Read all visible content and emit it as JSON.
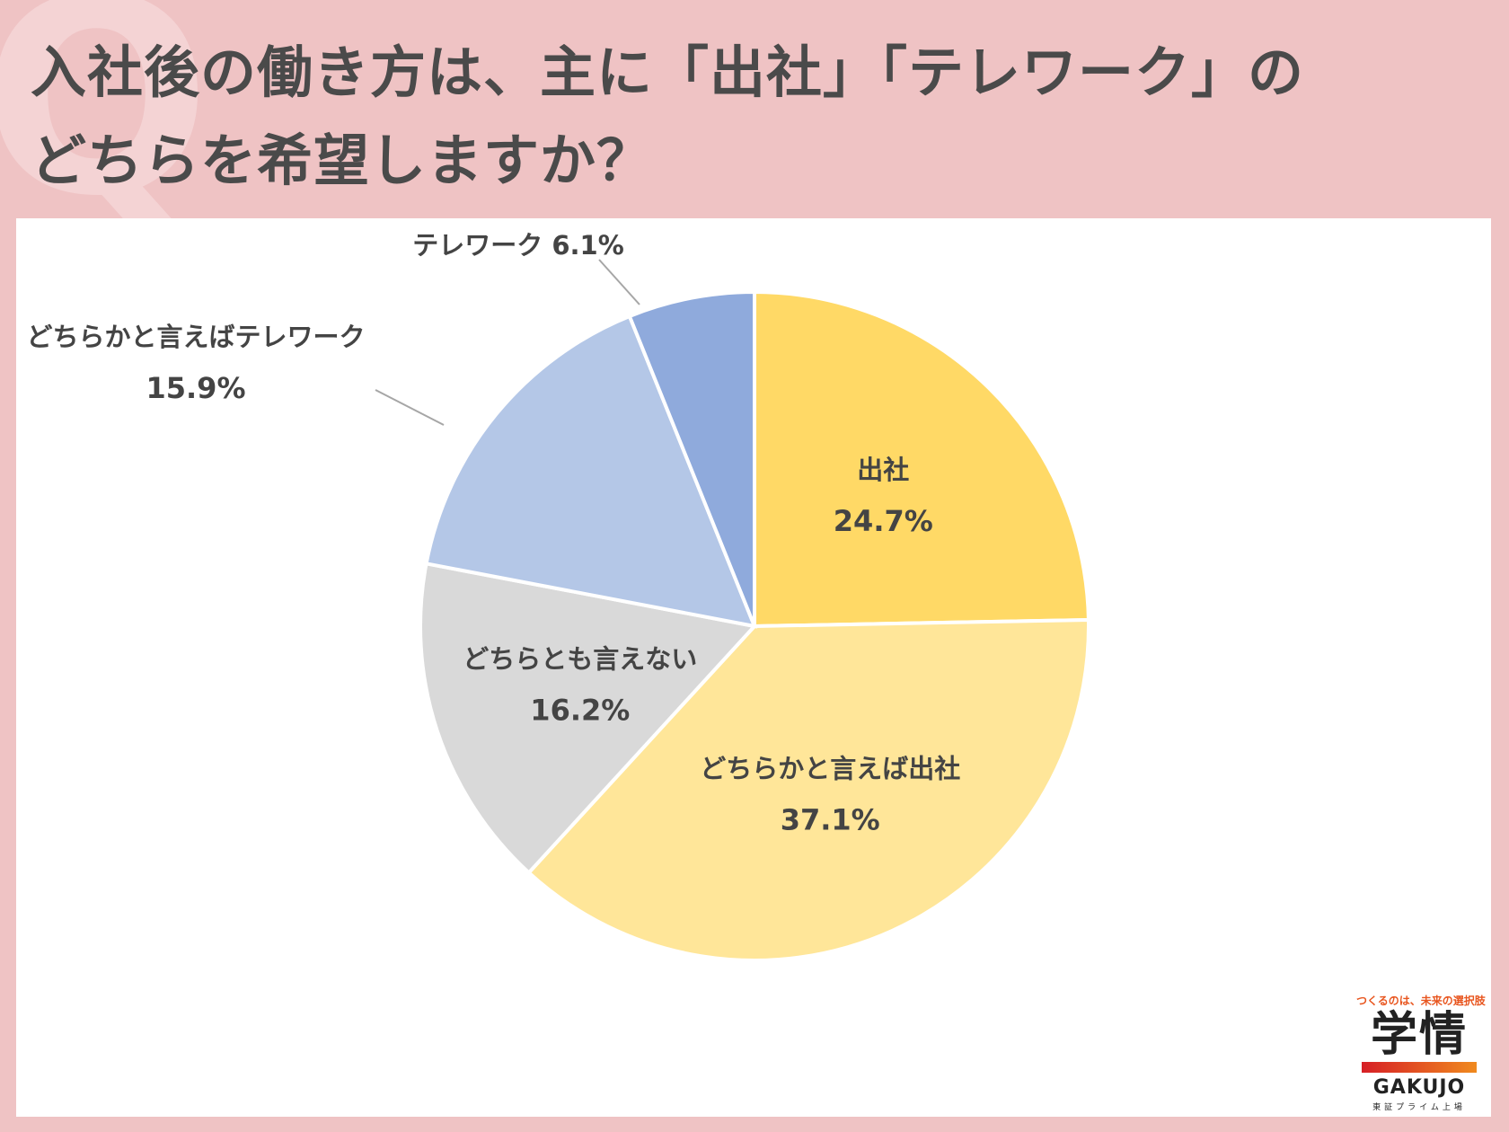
{
  "title": "入社後の働き方は、主に「出社」「テレワーク」の\nどちらを希望しますか？",
  "chart_data": {
    "type": "pie",
    "start_angle_deg": 0,
    "direction": "clockwise",
    "slices": [
      {
        "label": "出社",
        "value": 24.7,
        "value_label": "24.7%",
        "color": "#ffd966"
      },
      {
        "label": "どちらかと言えば出社",
        "value": 37.1,
        "value_label": "37.1%",
        "color": "#ffe699"
      },
      {
        "label": "どちらとも言えない",
        "value": 16.2,
        "value_label": "16.2%",
        "color": "#d9d9d9"
      },
      {
        "label": "どちらかと言えばテレワーク",
        "value": 15.9,
        "value_label": "15.9%",
        "color": "#b4c7e7"
      },
      {
        "label": "テレワーク",
        "value": 6.1,
        "value_label": "6.1%",
        "color": "#8faadc"
      }
    ]
  },
  "logo": {
    "tagline": "つくるのは、未来の選択肢",
    "kanji": "学情",
    "name": "GAKUJO",
    "sub": "東証プライム上場"
  }
}
